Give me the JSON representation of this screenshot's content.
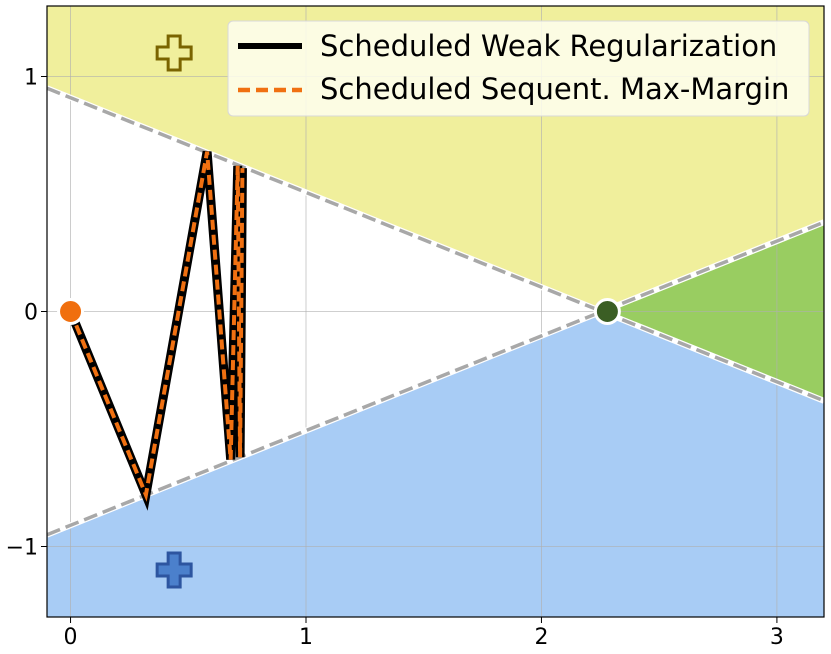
{
  "chart_data": {
    "type": "line",
    "xlim": [
      -0.1,
      3.2
    ],
    "ylim": [
      -1.3,
      1.3
    ],
    "grid": true,
    "legend_position": "top-right",
    "xticks": [
      {
        "value": 0,
        "label": "0"
      },
      {
        "value": 1,
        "label": "1"
      },
      {
        "value": 2,
        "label": "2"
      },
      {
        "value": 3,
        "label": "3"
      }
    ],
    "yticks": [
      {
        "value": 1,
        "label": "1"
      },
      {
        "value": 0,
        "label": "0"
      },
      {
        "value": -1,
        "label": "−1"
      }
    ],
    "regions": [
      {
        "name": "upper-class-region",
        "color": "#f0ef9c"
      },
      {
        "name": "lower-class-region",
        "color": "#a8ccf5"
      },
      {
        "name": "right-class-region",
        "color": "#99cd61"
      }
    ],
    "boundaries": [
      {
        "x": [
          -0.1,
          3.2
        ],
        "y": [
          0.95,
          -0.38
        ]
      },
      {
        "x": [
          -0.1,
          3.2
        ],
        "y": [
          -0.95,
          0.38
        ]
      }
    ],
    "boundary_color": "#a8a8a8",
    "series": [
      {
        "name": "Scheduled Weak Regularization",
        "color": "#000000",
        "x": [
          0.0,
          0.32,
          0.58,
          0.68,
          0.71,
          0.72,
          0.73
        ],
        "y": [
          0.0,
          -0.78,
          0.68,
          -0.63,
          0.62,
          -0.62,
          0.61
        ]
      },
      {
        "name": "Scheduled Sequent. Max-Margin",
        "color": "#f07011",
        "x": [
          0.0,
          0.32,
          0.58,
          0.68,
          0.71,
          0.72,
          0.73
        ],
        "y": [
          0.0,
          -0.78,
          0.68,
          -0.63,
          0.62,
          -0.62,
          0.61
        ]
      }
    ],
    "markers": [
      {
        "name": "origin-dot",
        "shape": "circle",
        "x": 0.0,
        "y": 0.0,
        "color": "#f06f0e"
      },
      {
        "name": "intersection-dot",
        "shape": "circle",
        "x": 2.28,
        "y": 0.0,
        "color": "#3b5e24"
      },
      {
        "name": "upper-plus-marker",
        "shape": "plus",
        "x": 0.44,
        "y": 1.1,
        "color": "#f0ef9c"
      },
      {
        "name": "lower-plus-marker",
        "shape": "plus",
        "x": 0.44,
        "y": -1.1,
        "color": "#4b80cc"
      }
    ]
  }
}
